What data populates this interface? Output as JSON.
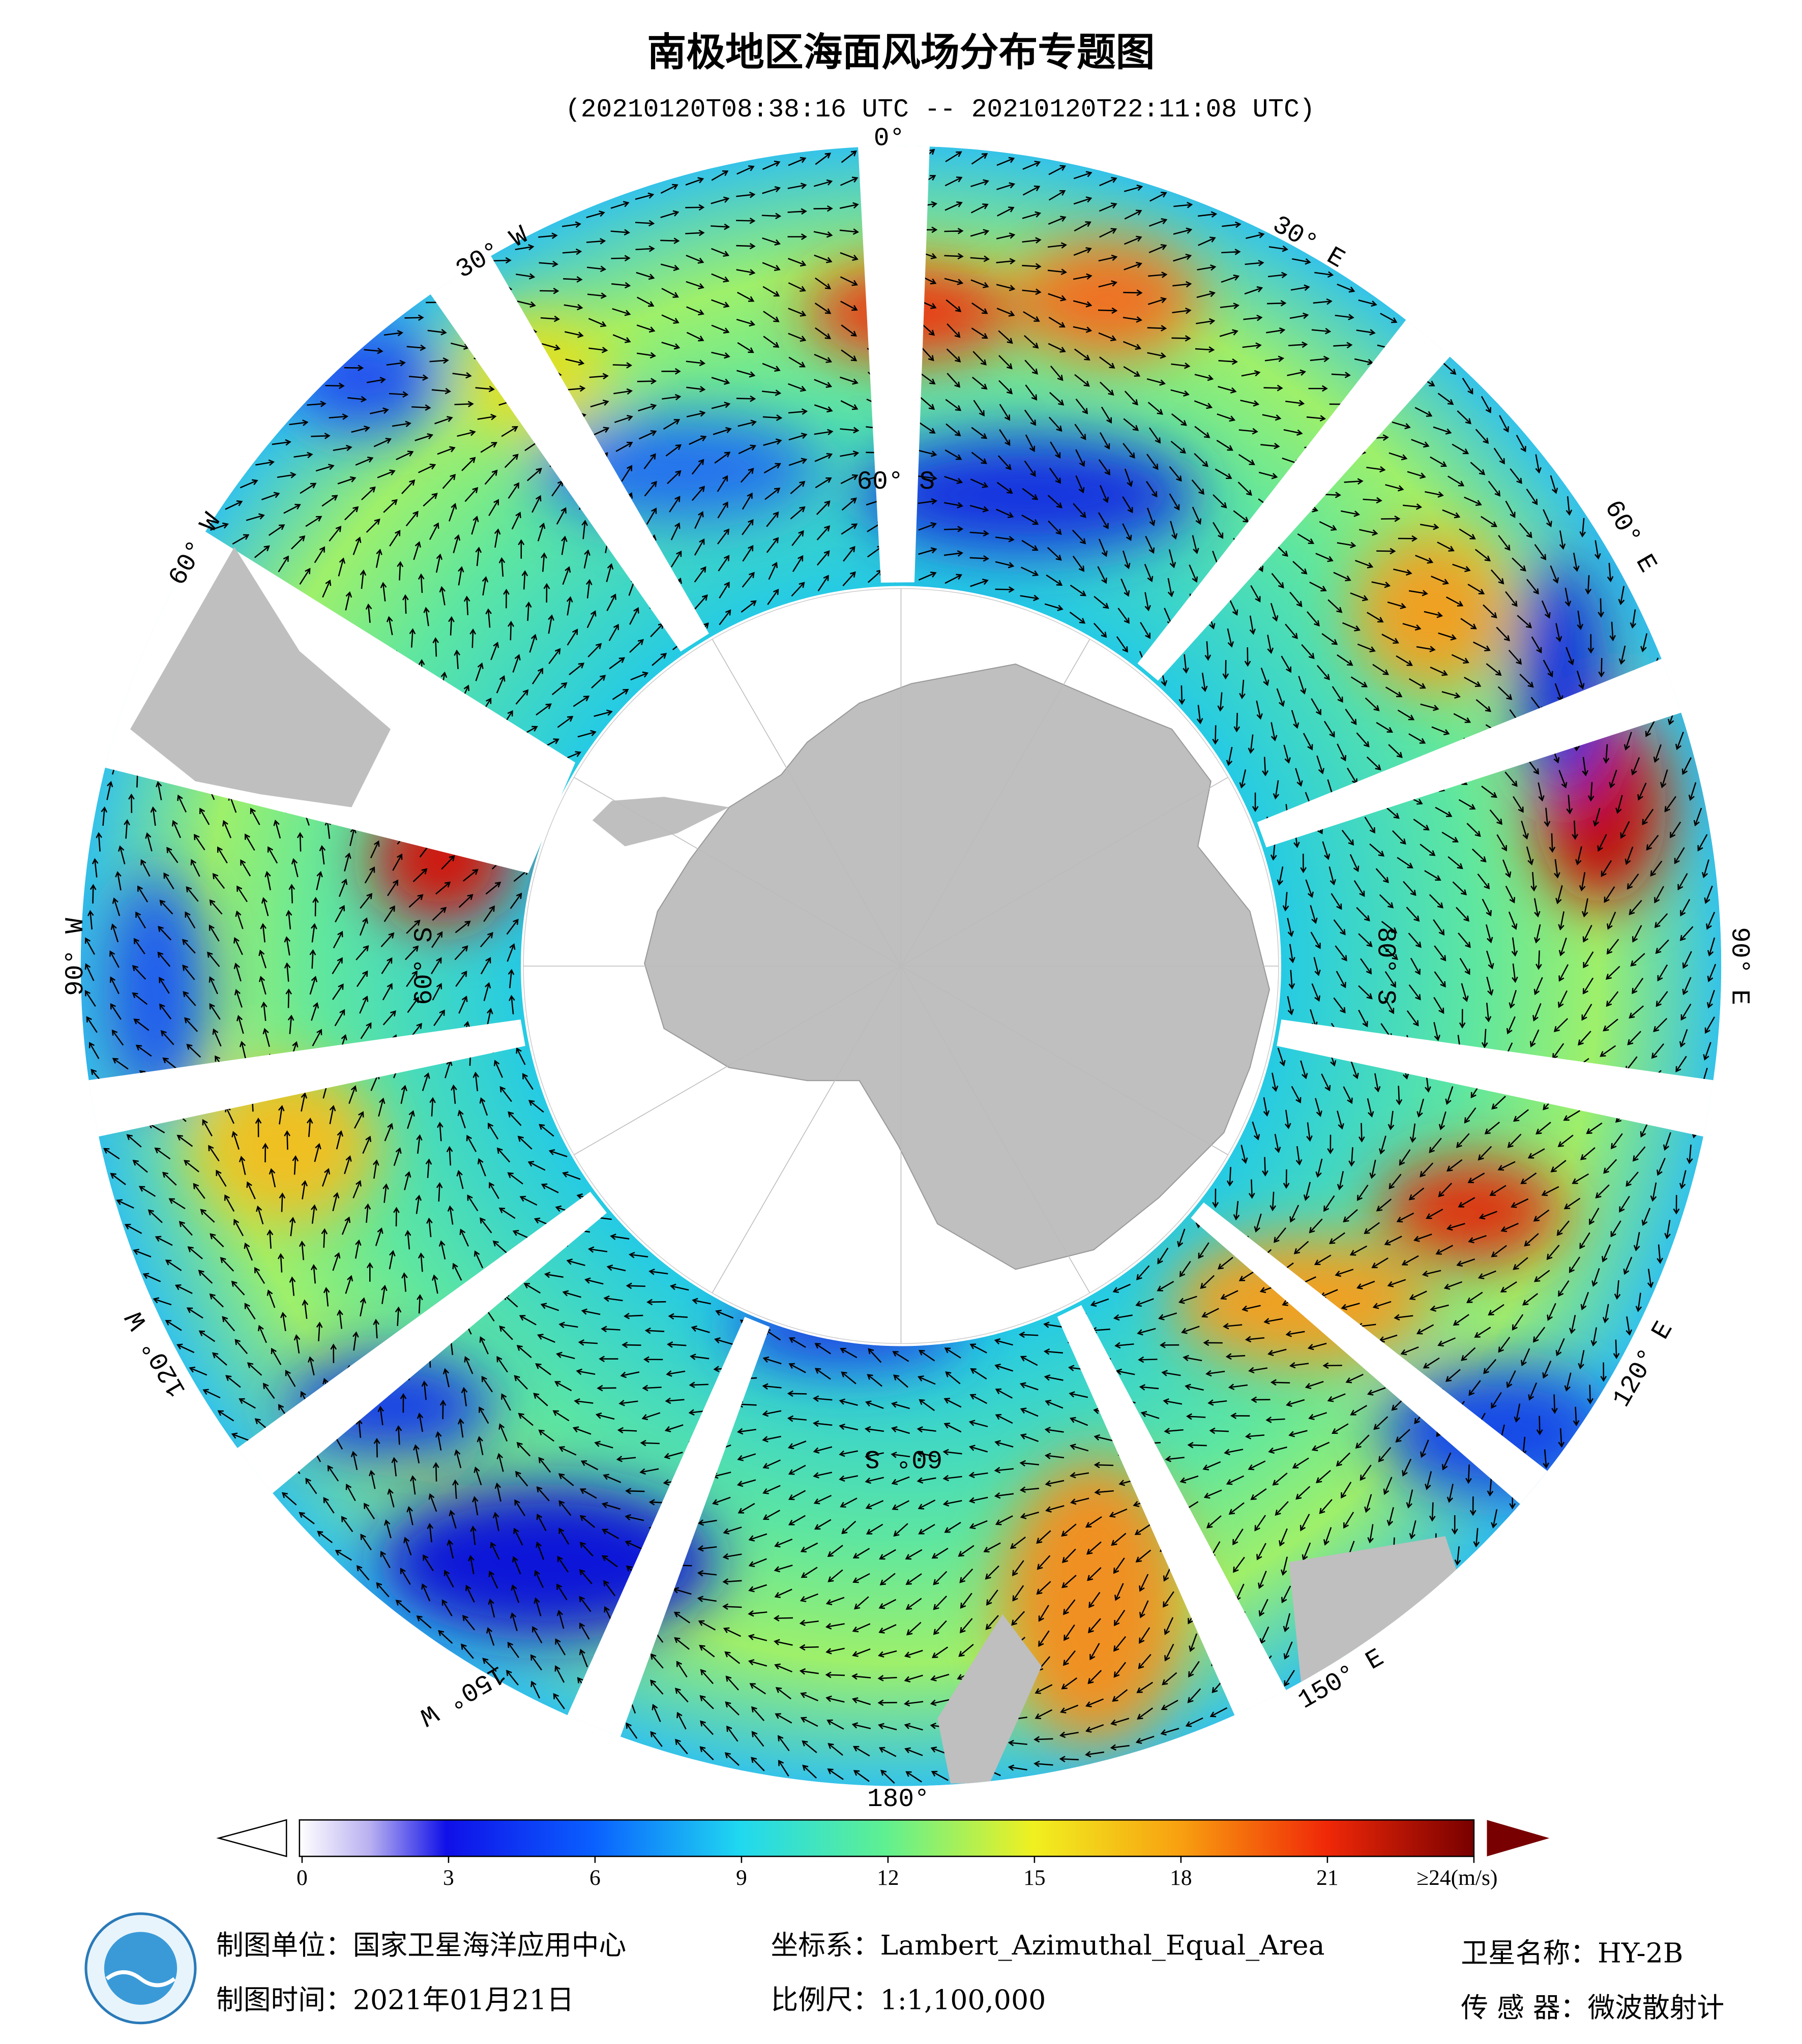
{
  "header": {
    "title": "南极地区海面风场分布专题图",
    "subtitle": "(20210120T08:38:16 UTC -- 20210120T22:11:08 UTC)"
  },
  "map": {
    "longitude_labels": [
      "0°",
      "30° E",
      "60° E",
      "90° E",
      "120° E",
      "150° E",
      "180°",
      "150° W",
      "120° W",
      "90° W",
      "60° W",
      "30° W"
    ],
    "latitude_labels": [
      "60° S",
      "60° S",
      "60° S",
      "80° S"
    ]
  },
  "colorbar": {
    "range": [
      0,
      24
    ],
    "ticks": [
      0,
      3,
      6,
      9,
      12,
      15,
      18,
      21,
      {
        "value": 24,
        "label": "≥24(m/s)"
      }
    ]
  },
  "footer": {
    "left": [
      "制图单位：国家卫星海洋应用中心",
      "制图时间：2021年01月21日"
    ],
    "middle": [
      "坐标系：Lambert_Azimuthal_Equal_Area",
      "比例尺：1:1,100,000"
    ],
    "right": [
      "卫星名称：HY-2B",
      "传 感 器：微波散射计"
    ]
  }
}
